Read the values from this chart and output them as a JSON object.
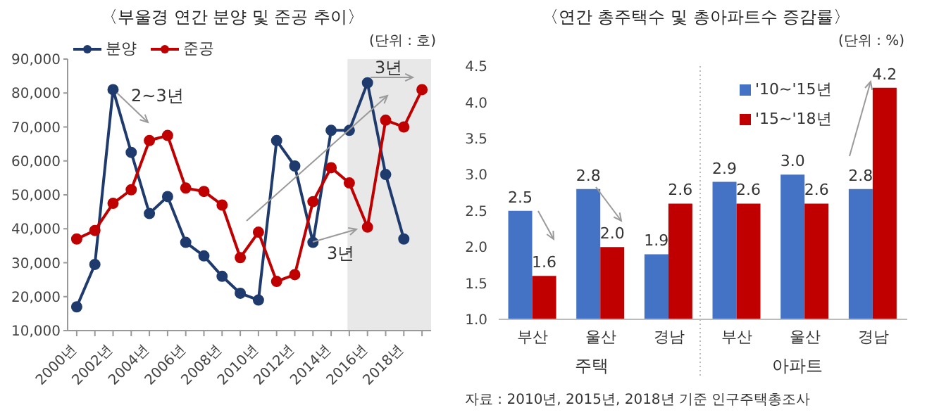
{
  "chart_data": [
    {
      "type": "line",
      "title": "〈부울경 연간 분양 및 준공 추이〉",
      "x": [
        2000,
        2001,
        2002,
        2003,
        2004,
        2005,
        2006,
        2007,
        2008,
        2009,
        2010,
        2011,
        2012,
        2013,
        2014,
        2015,
        2016,
        2017,
        2018,
        2019
      ],
      "series": [
        {
          "name": "분양",
          "color": "#1f3b6e",
          "values": [
            17000,
            29500,
            81000,
            62500,
            44500,
            49500,
            36000,
            32000,
            26000,
            21000,
            19000,
            66000,
            58500,
            36000,
            69000,
            69000,
            83000,
            56000,
            37000,
            null
          ]
        },
        {
          "name": "준공",
          "color": "#c00000",
          "values": [
            37000,
            39500,
            47500,
            51500,
            66000,
            67500,
            52000,
            51000,
            47000,
            31500,
            39000,
            24500,
            26500,
            48000,
            58000,
            53500,
            40500,
            72000,
            70000,
            81000
          ]
        }
      ],
      "xlim": [
        1999.5,
        2019.5
      ],
      "xticks": [
        {
          "value": 2000,
          "label": "2000년"
        },
        {
          "value": 2001,
          "label": null
        },
        {
          "value": 2002,
          "label": "2002년"
        },
        {
          "value": 2003,
          "label": null
        },
        {
          "value": 2004,
          "label": "2004년"
        },
        {
          "value": 2005,
          "label": null
        },
        {
          "value": 2006,
          "label": "2006년"
        },
        {
          "value": 2007,
          "label": null
        },
        {
          "value": 2008,
          "label": "2008년"
        },
        {
          "value": 2009,
          "label": null
        },
        {
          "value": 2010,
          "label": "2010년"
        },
        {
          "value": 2011,
          "label": null
        },
        {
          "value": 2012,
          "label": "2012년"
        },
        {
          "value": 2013,
          "label": null
        },
        {
          "value": 2014,
          "label": "2014년"
        },
        {
          "value": 2015,
          "label": null
        },
        {
          "value": 2016,
          "label": "2016년"
        },
        {
          "value": 2017,
          "label": null
        },
        {
          "value": 2018,
          "label": "2018년"
        },
        {
          "value": 2019,
          "label": null
        }
      ],
      "ylim": [
        10000,
        90000
      ],
      "yticks": [
        {
          "value": 10000,
          "label": "10,000"
        },
        {
          "value": 20000,
          "label": "20,000"
        },
        {
          "value": 30000,
          "label": "30,000"
        },
        {
          "value": 40000,
          "label": "40,000"
        },
        {
          "value": 50000,
          "label": "50,000"
        },
        {
          "value": 60000,
          "label": "60,000"
        },
        {
          "value": 70000,
          "label": "70,000"
        },
        {
          "value": 80000,
          "label": "80,000"
        },
        {
          "value": 90000,
          "label": "90,000"
        }
      ],
      "bands": [
        {
          "axis": "x",
          "from": 2014.9,
          "to": 2019.5,
          "color": "#e8e8e8"
        }
      ],
      "annotations": [
        "2~3년",
        "3년",
        "3년",
        "(단위 : 호)"
      ],
      "marker": "circle",
      "line_style": "solid",
      "legend": "top left",
      "grid": false
    },
    {
      "type": "bar",
      "title": "〈연간 총주택수 및 총아파트수 증감률〉",
      "categories": [
        "부산",
        "울산",
        "경남",
        "부산",
        "울산",
        "경남"
      ],
      "series": [
        {
          "name": "'10~'15년",
          "color": "#4472c4",
          "values": [
            2.5,
            2.8,
            1.9,
            2.9,
            3.0,
            2.8
          ],
          "value_labels": [
            "2.5",
            "2.8",
            "1.9",
            "2.9",
            "3.0",
            "2.8"
          ]
        },
        {
          "name": "'15~'18년",
          "color": "#c00000",
          "values": [
            1.6,
            2.0,
            2.6,
            2.6,
            2.6,
            4.2
          ],
          "value_labels": [
            "1.6",
            "2.0",
            "2.6",
            "2.6",
            "2.6",
            "4.2"
          ]
        }
      ],
      "ylim": [
        1,
        4.5
      ],
      "yticks": [
        {
          "value": 1,
          "label": "1.0"
        },
        {
          "value": 1.5,
          "label": "1.5"
        },
        {
          "value": 2,
          "label": "2.0"
        },
        {
          "value": 2.5,
          "label": "2.5"
        },
        {
          "value": 3,
          "label": "3.0"
        },
        {
          "value": 3.5,
          "label": "3.5"
        },
        {
          "value": 4,
          "label": "4.0"
        },
        {
          "value": 4.5,
          "label": "4.5"
        }
      ],
      "annotations": [
        "(단위 : %)",
        "주택",
        "아파트",
        "자료 : 2010년, 2015년, 2018년 기준 인구주택총조사"
      ],
      "legend": "top right",
      "grid": false
    }
  ]
}
